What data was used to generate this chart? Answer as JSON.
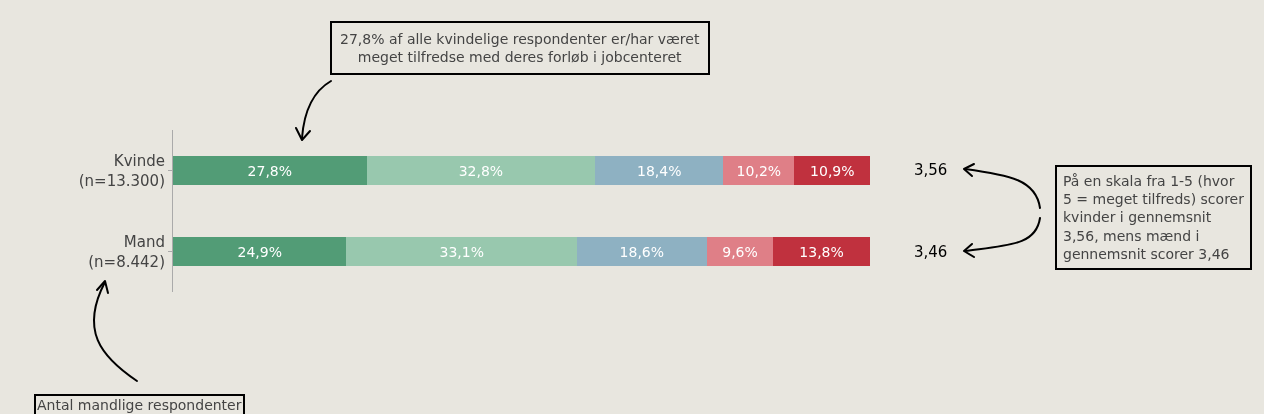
{
  "chart_data": {
    "type": "bar",
    "orientation": "horizontal",
    "stacked": true,
    "legend": false,
    "grid": false,
    "tick_labels": "y",
    "categories": [
      "Kvinde\n(n=13.300)",
      "Mand\n(n=8.442)"
    ],
    "xlim": [
      0,
      100.2
    ],
    "series": [
      {
        "color": "#529c76",
        "values": [
          27.8,
          24.9
        ],
        "value_labels": [
          "27,8%",
          "24,9%"
        ]
      },
      {
        "color": "#98c8ae",
        "values": [
          32.8,
          33.1
        ],
        "value_labels": [
          "32,8%",
          "33,1%"
        ]
      },
      {
        "color": "#8eb1c2",
        "values": [
          18.4,
          18.6
        ],
        "value_labels": [
          "18,4%",
          "18,6%"
        ]
      },
      {
        "color": "#df7f87",
        "values": [
          10.2,
          9.6
        ],
        "value_labels": [
          "10,2%",
          "9,6%"
        ]
      },
      {
        "color": "#c0313e",
        "values": [
          10.9,
          13.8
        ],
        "value_labels": [
          "10,9%",
          "13,8%"
        ]
      }
    ],
    "annotations": [
      "27,8% af alle kvindelige respondenter er/har været\nmeget tilfredse med deres forløb i jobcenteret",
      "Antal mandlige respondenter",
      "3,56",
      "3,46",
      "På en skala fra 1-5 (hvor\n5 = meget tilfreds) scorer\nkvinder i gennemsnit\n3,56, mens mænd i\ngennemsnit scorer 3,46"
    ]
  }
}
